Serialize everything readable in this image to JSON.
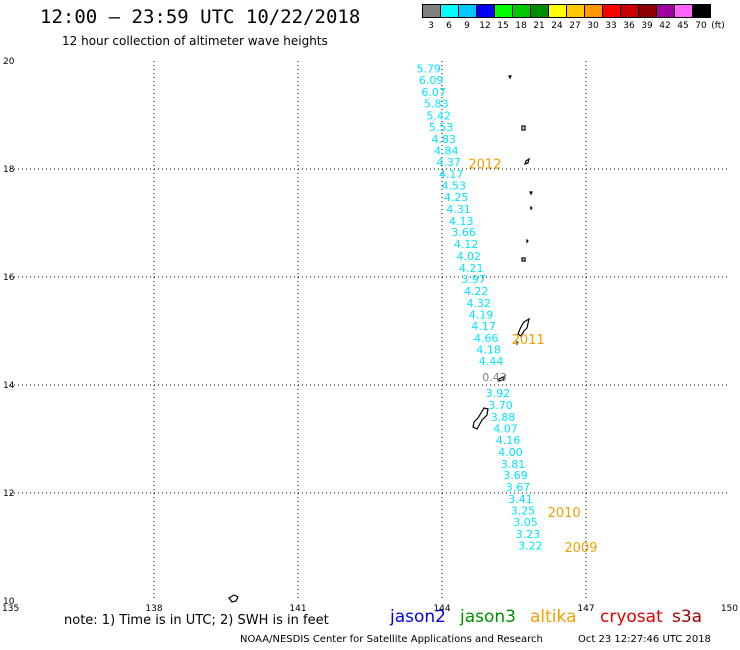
{
  "header": {
    "title": "12:00 – 23:59 UTC 10/22/2018",
    "subtitle": "12 hour collection of altimeter wave heights"
  },
  "legend": {
    "unit": "(ft)",
    "items": [
      {
        "label": "3",
        "color": "#808080"
      },
      {
        "label": "6",
        "color": "#00ffff"
      },
      {
        "label": "9",
        "color": "#00c8ff"
      },
      {
        "label": "12",
        "color": "#0000ff"
      },
      {
        "label": "15",
        "color": "#00ff00"
      },
      {
        "label": "18",
        "color": "#00c800"
      },
      {
        "label": "21",
        "color": "#008c00"
      },
      {
        "label": "24",
        "color": "#ffff00"
      },
      {
        "label": "27",
        "color": "#ffc800"
      },
      {
        "label": "30",
        "color": "#ff9600"
      },
      {
        "label": "33",
        "color": "#ff0000"
      },
      {
        "label": "36",
        "color": "#c80000"
      },
      {
        "label": "39",
        "color": "#8c0000"
      },
      {
        "label": "42",
        "color": "#a000a0"
      },
      {
        "label": "45",
        "color": "#ff64ff"
      },
      {
        "label": "70",
        "color": "#000000"
      }
    ]
  },
  "map": {
    "lon_range": [
      135,
      150
    ],
    "lat_range": [
      10,
      20
    ],
    "x_ticks": [
      135,
      138,
      141,
      144,
      147,
      150
    ],
    "y_ticks": [
      10,
      12,
      14,
      16,
      18,
      20
    ],
    "grid": "dotted",
    "track_color": "#00e5ff",
    "year_color": "#f0a000",
    "track_labels": [
      {
        "text": "5.79",
        "lat": 19.86,
        "color": "#00e5ff"
      },
      {
        "text": "6.09",
        "lat": 19.65,
        "color": "#00e5ff"
      },
      {
        "text": "6.07",
        "lat": 19.43,
        "color": "#00e5ff"
      },
      {
        "text": "5.83",
        "lat": 19.21,
        "color": "#00e5ff"
      },
      {
        "text": "5.42",
        "lat": 18.99,
        "color": "#00e5ff"
      },
      {
        "text": "5.53",
        "lat": 18.78,
        "color": "#00e5ff"
      },
      {
        "text": "4.83",
        "lat": 18.56,
        "color": "#00e5ff"
      },
      {
        "text": "4.84",
        "lat": 18.34,
        "color": "#00e5ff"
      },
      {
        "text": "4.37",
        "lat": 18.13,
        "color": "#00e5ff"
      },
      {
        "text": "4.17",
        "lat": 17.91,
        "color": "#00e5ff"
      },
      {
        "text": "4.53",
        "lat": 17.69,
        "color": "#00e5ff"
      },
      {
        "text": "4.25",
        "lat": 17.48,
        "color": "#00e5ff"
      },
      {
        "text": "4.31",
        "lat": 17.26,
        "color": "#00e5ff"
      },
      {
        "text": "4.13",
        "lat": 17.04,
        "color": "#00e5ff"
      },
      {
        "text": "3.66",
        "lat": 16.83,
        "color": "#00e5ff"
      },
      {
        "text": "4.12",
        "lat": 16.61,
        "color": "#00e5ff"
      },
      {
        "text": "4.02",
        "lat": 16.39,
        "color": "#00e5ff"
      },
      {
        "text": "4.21",
        "lat": 16.17,
        "color": "#00e5ff"
      },
      {
        "text": "3.97",
        "lat": 15.96,
        "color": "#00e5ff"
      },
      {
        "text": "4.22",
        "lat": 15.74,
        "color": "#00e5ff"
      },
      {
        "text": "4.32",
        "lat": 15.52,
        "color": "#00e5ff"
      },
      {
        "text": "4.19",
        "lat": 15.31,
        "color": "#00e5ff"
      },
      {
        "text": "4.17",
        "lat": 15.09,
        "color": "#00e5ff"
      },
      {
        "text": "4.66",
        "lat": 14.87,
        "color": "#00e5ff"
      },
      {
        "text": "4.18",
        "lat": 14.66,
        "color": "#00e5ff"
      },
      {
        "text": "4.44",
        "lat": 14.44,
        "color": "#00e5ff"
      },
      {
        "text": "0.43",
        "lat": 14.15,
        "color": "#808080"
      },
      {
        "text": "3.92",
        "lat": 13.85,
        "color": "#00e5ff"
      },
      {
        "text": "3.70",
        "lat": 13.63,
        "color": "#00e5ff"
      },
      {
        "text": "3.88",
        "lat": 13.41,
        "color": "#00e5ff"
      },
      {
        "text": "4.07",
        "lat": 13.19,
        "color": "#00e5ff"
      },
      {
        "text": "4.16",
        "lat": 12.98,
        "color": "#00e5ff"
      },
      {
        "text": "4.00",
        "lat": 12.76,
        "color": "#00e5ff"
      },
      {
        "text": "3.81",
        "lat": 12.54,
        "color": "#00e5ff"
      },
      {
        "text": "3.69",
        "lat": 12.33,
        "color": "#00e5ff"
      },
      {
        "text": "3.67",
        "lat": 12.11,
        "color": "#00e5ff"
      },
      {
        "text": "3.41",
        "lat": 11.89,
        "color": "#00e5ff"
      },
      {
        "text": "3.25",
        "lat": 11.68,
        "color": "#00e5ff"
      },
      {
        "text": "3.05",
        "lat": 11.46,
        "color": "#00e5ff"
      },
      {
        "text": "3.23",
        "lat": 11.24,
        "color": "#00e5ff"
      },
      {
        "text": "3.22",
        "lat": 11.03,
        "color": "#00e5ff"
      }
    ],
    "year_labels": [
      {
        "text": "2012",
        "lat": 18.1,
        "lon": 144.55
      },
      {
        "text": "2011",
        "lat": 14.85,
        "lon": 145.45
      },
      {
        "text": "2010",
        "lat": 11.65,
        "lon": 146.2
      },
      {
        "text": "2009",
        "lat": 11.0,
        "lon": 146.55
      }
    ]
  },
  "footer": {
    "note": "note: 1) Time is in UTC; 2) SWH is in feet",
    "satellites": [
      {
        "name": "jason2",
        "color": "#0000e0"
      },
      {
        "name": "jason3",
        "color": "#009000"
      },
      {
        "name": "altika",
        "color": "#f0a000"
      },
      {
        "name": "cryosat",
        "color": "#e00000"
      },
      {
        "name": "s3a",
        "color": "#a00000"
      }
    ],
    "credit": "NOAA/NESDIS Center for Satellite Applications and Research",
    "timestamp": "Oct 23 12:27:46 UTC 2018"
  }
}
